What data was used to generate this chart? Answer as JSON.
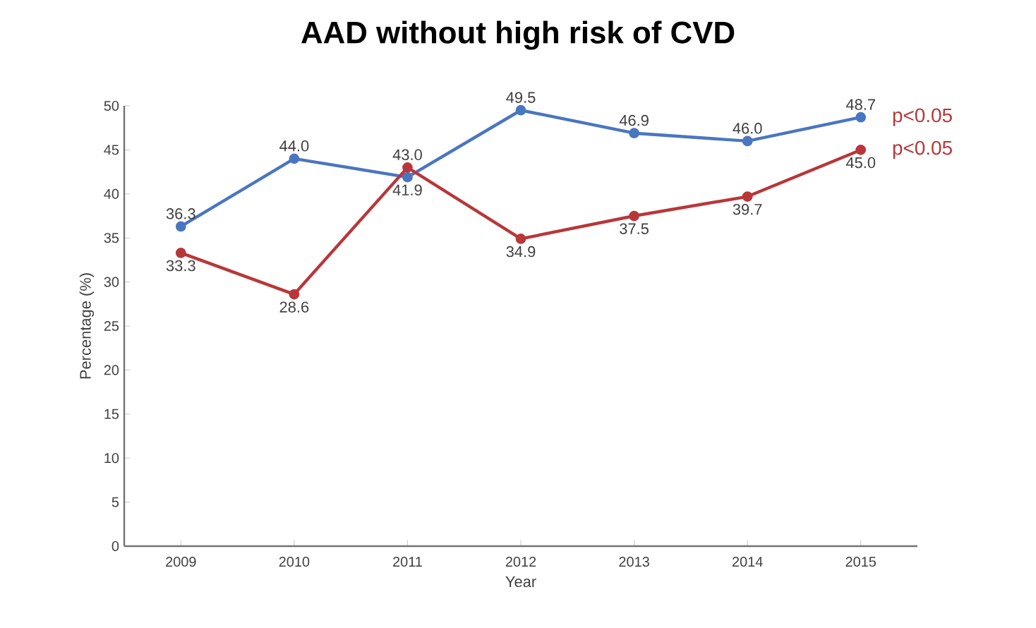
{
  "chart_data": {
    "type": "line",
    "title": "AAD without high risk of CVD",
    "xlabel": "Year",
    "ylabel": "Percentage (%)",
    "categories": [
      "2009",
      "2010",
      "2011",
      "2012",
      "2013",
      "2014",
      "2015"
    ],
    "series": [
      {
        "color": "#4a76c0",
        "values": [
          36.3,
          44.0,
          41.9,
          49.5,
          46.9,
          46.0,
          48.7
        ],
        "value_labels": [
          "36.3",
          "44.0",
          "41.9",
          "49.5",
          "46.9",
          "46.0",
          "48.7"
        ]
      },
      {
        "color": "#b8373a",
        "values": [
          33.3,
          28.6,
          43.0,
          34.9,
          37.5,
          39.7,
          45.0
        ],
        "value_labels": [
          "33.3",
          "28.6",
          "43.0",
          "34.9",
          "37.5",
          "39.7",
          "45.0"
        ]
      }
    ],
    "ylim": [
      0,
      50
    ],
    "yticks": [
      0,
      5,
      10,
      15,
      20,
      25,
      30,
      35,
      40,
      45,
      50
    ],
    "marker": "circle",
    "line_style": "solid",
    "grid": false,
    "annotations": [
      {
        "text": "p<0.05",
        "x": "2015",
        "y": 48.7
      },
      {
        "text": "p<0.05",
        "x": "2015",
        "y": 45.0
      }
    ]
  }
}
